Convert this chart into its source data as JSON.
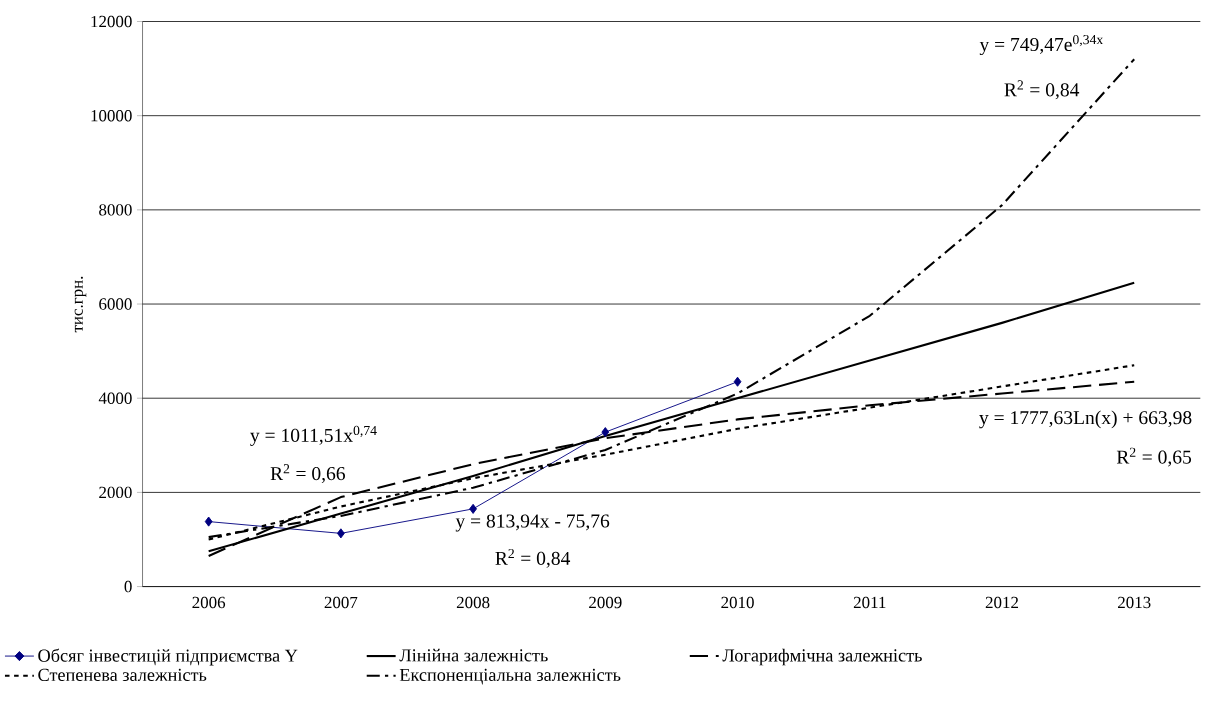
{
  "chart_data": {
    "type": "line",
    "ylabel": "тис.грн.",
    "categories": [
      "2006",
      "2007",
      "2008",
      "2009",
      "2010",
      "2011",
      "2012",
      "2013"
    ],
    "ylim": [
      0,
      12000
    ],
    "yticks": [
      0,
      2000,
      4000,
      6000,
      8000,
      10000,
      12000
    ],
    "grid": "y",
    "legend": "bottom",
    "series": [
      {
        "name": "Обсяг інвестицій підприємства Y",
        "color": "#000080",
        "marker": "diamond",
        "line_style": "solid",
        "values": [
          1380,
          1130,
          1650,
          3280,
          4350,
          null,
          null,
          null
        ]
      },
      {
        "name": "Лінійна залежність",
        "color": "#000000",
        "marker": "none",
        "line_style": "solid",
        "values": [
          750,
          1550,
          2350,
          3200,
          4000,
          4800,
          5600,
          6450
        ]
      },
      {
        "name": "Логарифмічна залежність",
        "color": "#000000",
        "marker": "none",
        "line_style": "dashed",
        "values": [
          650,
          1900,
          2600,
          3150,
          3550,
          3850,
          4100,
          4350
        ]
      },
      {
        "name": "Степенева залежність",
        "color": "#000000",
        "marker": "none",
        "line_style": "dotted",
        "values": [
          1000,
          1700,
          2300,
          2800,
          3350,
          3800,
          4250,
          4700
        ]
      },
      {
        "name": "Експоненціальна залежність",
        "color": "#000000",
        "marker": "none",
        "line_style": "dashdot",
        "values": [
          1050,
          1500,
          2100,
          2900,
          4100,
          5750,
          8100,
          11200
        ]
      }
    ],
    "annotations": [
      "y = 749,47e$^{0,34x}$",
      "R$^{2}$ = 0,84",
      "y = 1011,51x$^{0,74}$",
      "R$^{2}$ = 0,66",
      "y = 813,94x - 75,76",
      "R$^{2}$ = 0,84",
      "y = 1777,63Ln(x) + 663,98",
      "R$^{2}$ = 0,65"
    ]
  }
}
